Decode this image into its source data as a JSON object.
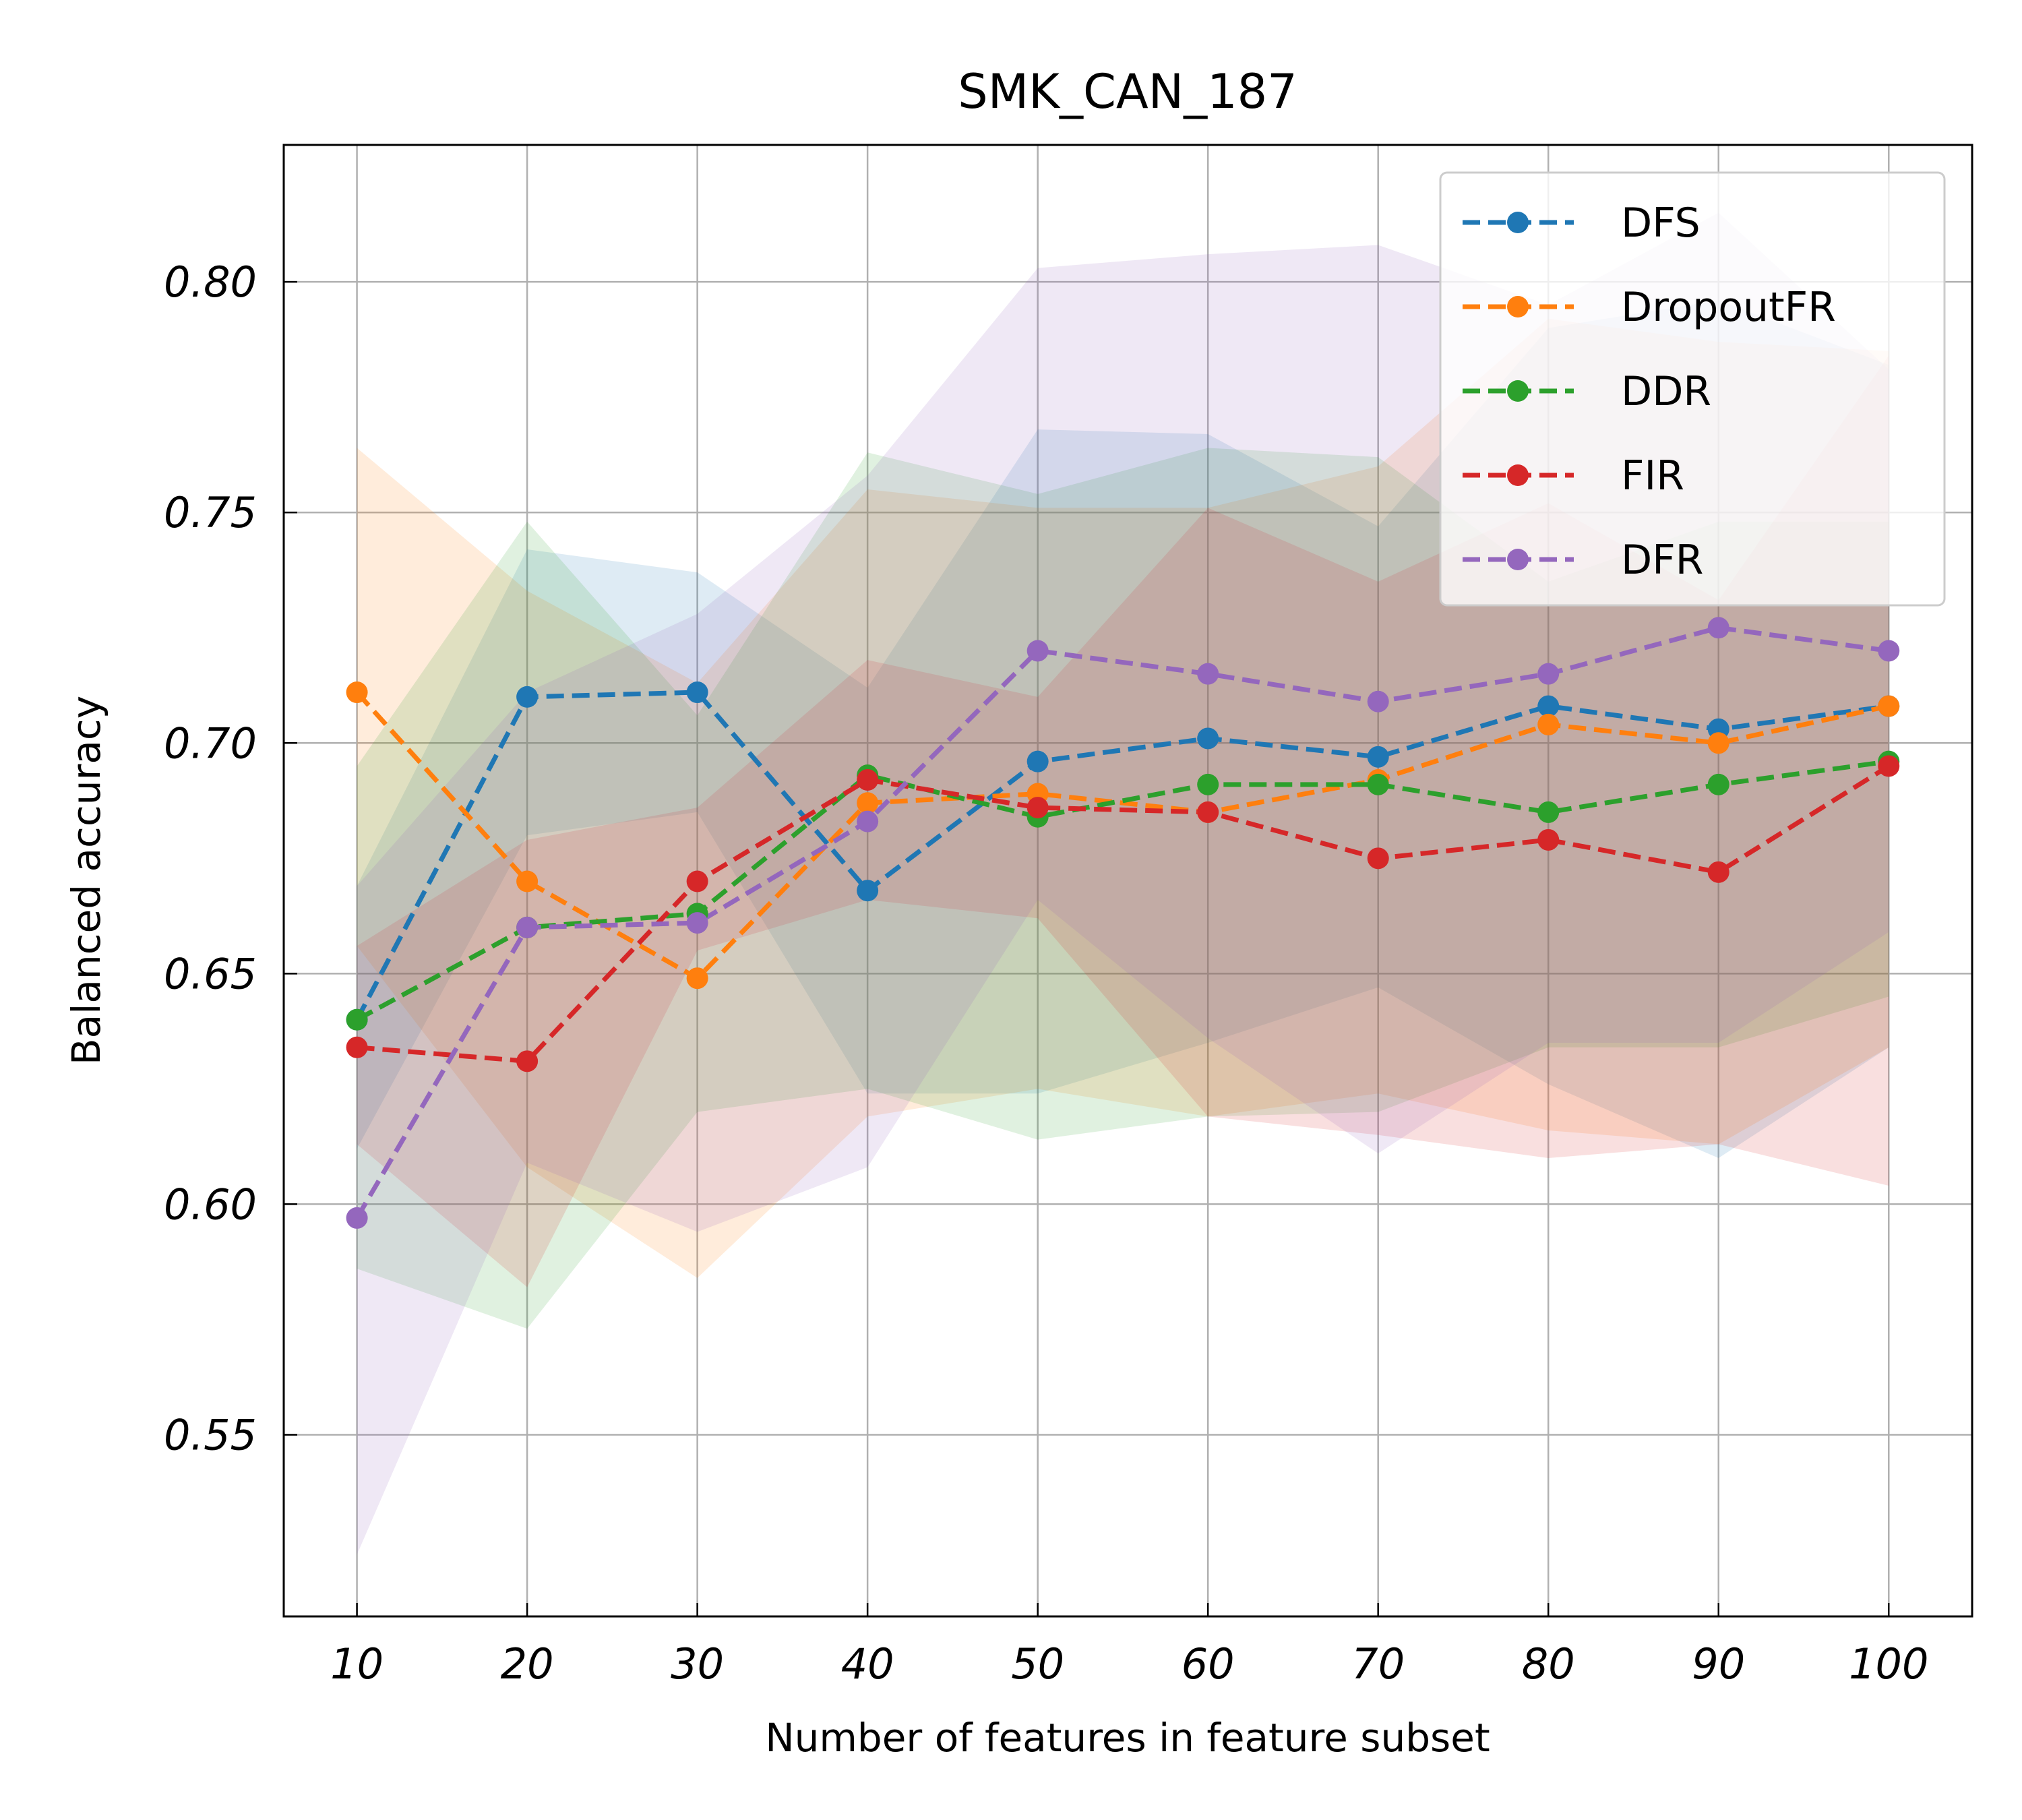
{
  "chart_data": {
    "type": "line",
    "title": "SMK_CAN_187",
    "xlabel": "Number of features in feature subset",
    "ylabel": "Balanced accuracy",
    "x": [
      10,
      20,
      30,
      40,
      50,
      60,
      70,
      80,
      90,
      100
    ],
    "xticks": [
      "10",
      "20",
      "30",
      "40",
      "50",
      "60",
      "70",
      "80",
      "90",
      "100"
    ],
    "yticks": [
      "0.55",
      "0.60",
      "0.65",
      "0.70",
      "0.75",
      "0.80"
    ],
    "ytick_values": [
      0.55,
      0.6,
      0.65,
      0.7,
      0.75,
      0.8
    ],
    "xlim": [
      5.7,
      104.9
    ],
    "ylim": [
      0.5106,
      0.8297
    ],
    "grid": true,
    "legend_position": "top-right",
    "series": [
      {
        "name": "DFS",
        "color": "#1f77b4",
        "values": [
          0.64,
          0.71,
          0.711,
          0.668,
          0.696,
          0.701,
          0.697,
          0.708,
          0.703,
          0.708
        ],
        "upper": [
          0.669,
          0.742,
          0.737,
          0.712,
          0.768,
          0.767,
          0.747,
          0.79,
          0.796,
          0.782
        ],
        "lower": [
          0.612,
          0.68,
          0.685,
          0.624,
          0.624,
          0.635,
          0.647,
          0.626,
          0.61,
          0.634
        ]
      },
      {
        "name": "DropoutFR",
        "color": "#ff7f0e",
        "values": [
          0.711,
          0.67,
          0.649,
          0.687,
          0.689,
          0.685,
          0.692,
          0.704,
          0.7,
          0.708
        ],
        "upper": [
          0.764,
          0.733,
          0.713,
          0.755,
          0.751,
          0.751,
          0.76,
          0.792,
          0.787,
          0.785
        ],
        "lower": [
          0.656,
          0.608,
          0.584,
          0.619,
          0.625,
          0.619,
          0.624,
          0.616,
          0.613,
          0.634
        ]
      },
      {
        "name": "DDR",
        "color": "#2ca02c",
        "values": [
          0.64,
          0.66,
          0.663,
          0.693,
          0.684,
          0.691,
          0.691,
          0.685,
          0.691,
          0.696
        ],
        "upper": [
          0.695,
          0.748,
          0.706,
          0.763,
          0.754,
          0.764,
          0.762,
          0.735,
          0.748,
          0.748
        ],
        "lower": [
          0.586,
          0.573,
          0.62,
          0.625,
          0.614,
          0.619,
          0.62,
          0.634,
          0.634,
          0.645
        ]
      },
      {
        "name": "FIR",
        "color": "#d62728",
        "values": [
          0.634,
          0.631,
          0.67,
          0.692,
          0.686,
          0.685,
          0.675,
          0.679,
          0.672,
          0.695
        ],
        "upper": [
          0.656,
          0.679,
          0.686,
          0.718,
          0.71,
          0.751,
          0.735,
          0.752,
          0.731,
          0.784
        ],
        "lower": [
          0.613,
          0.582,
          0.655,
          0.666,
          0.662,
          0.619,
          0.615,
          0.61,
          0.613,
          0.604
        ]
      },
      {
        "name": "DFR",
        "color": "#9467bd",
        "values": [
          0.597,
          0.66,
          0.661,
          0.683,
          0.72,
          0.715,
          0.709,
          0.715,
          0.725,
          0.72
        ],
        "upper": [
          0.669,
          0.711,
          0.728,
          0.758,
          0.803,
          0.806,
          0.808,
          0.795,
          0.815,
          0.781
        ],
        "lower": [
          0.524,
          0.609,
          0.594,
          0.608,
          0.666,
          0.636,
          0.611,
          0.635,
          0.635,
          0.659
        ]
      }
    ]
  }
}
